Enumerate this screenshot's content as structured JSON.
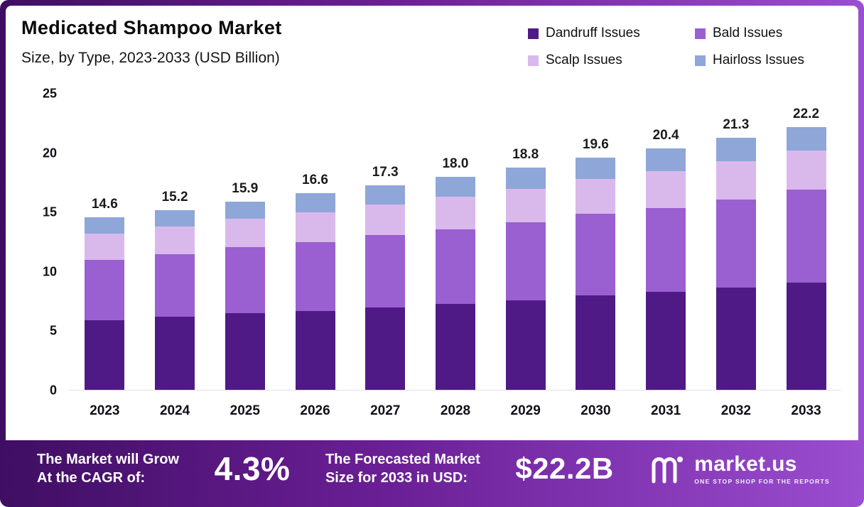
{
  "header": {
    "title": "Medicated Shampoo Market",
    "subtitle": "Size, by Type, 2023-2033 (USD Billion)"
  },
  "legend": [
    {
      "label": "Dandruff Issues",
      "color": "#4f1a86"
    },
    {
      "label": "Bald Issues",
      "color": "#9a5fd0"
    },
    {
      "label": "Scalp Issues",
      "color": "#d9b9ec"
    },
    {
      "label": "Hairloss Issues",
      "color": "#8ea6d8"
    }
  ],
  "chart_data": {
    "type": "bar",
    "stacked": true,
    "title": "Medicated Shampoo Market Size, by Type, 2023-2033 (USD Billion)",
    "xlabel": "",
    "ylabel": "USD Billion",
    "ylim": [
      0,
      25
    ],
    "yticks": [
      0,
      5,
      10,
      15,
      20,
      25
    ],
    "grid": false,
    "legend_position": "top-right",
    "categories": [
      "2023",
      "2024",
      "2025",
      "2026",
      "2027",
      "2028",
      "2029",
      "2030",
      "2031",
      "2032",
      "2033"
    ],
    "series": [
      {
        "name": "Dandruff Issues",
        "color": "#4f1a86",
        "values": [
          5.9,
          6.2,
          6.5,
          6.7,
          7.0,
          7.3,
          7.6,
          8.0,
          8.3,
          8.7,
          9.1
        ]
      },
      {
        "name": "Bald Issues",
        "color": "#9a5fd0",
        "values": [
          5.1,
          5.3,
          5.6,
          5.8,
          6.1,
          6.3,
          6.6,
          6.9,
          7.1,
          7.4,
          7.8
        ]
      },
      {
        "name": "Scalp Issues",
        "color": "#d9b9ec",
        "values": [
          2.2,
          2.3,
          2.4,
          2.5,
          2.6,
          2.7,
          2.8,
          2.9,
          3.1,
          3.2,
          3.3
        ]
      },
      {
        "name": "Hairloss Issues",
        "color": "#8ea6d8",
        "values": [
          1.4,
          1.4,
          1.4,
          1.6,
          1.6,
          1.7,
          1.8,
          1.8,
          1.9,
          2.0,
          2.0
        ]
      }
    ],
    "totals": [
      14.6,
      15.2,
      15.9,
      16.6,
      17.3,
      18.0,
      18.8,
      19.6,
      20.4,
      21.3,
      22.2
    ]
  },
  "footer": {
    "cagr_label_line1": "The Market will Grow",
    "cagr_label_line2": "At the CAGR of:",
    "cagr_value": "4.3%",
    "forecast_label_line1": "The Forecasted Market",
    "forecast_label_line2": "Size for 2033 in USD:",
    "forecast_value": "$22.2B",
    "brand_name": "market.us",
    "brand_tagline": "ONE STOP SHOP FOR THE REPORTS"
  },
  "colors": {
    "frame_gradient_start": "#3f0e63",
    "frame_gradient_end": "#9a4ed0",
    "panel_background": "#ffffff",
    "text_dark": "#101018",
    "text_white": "#ffffff"
  }
}
